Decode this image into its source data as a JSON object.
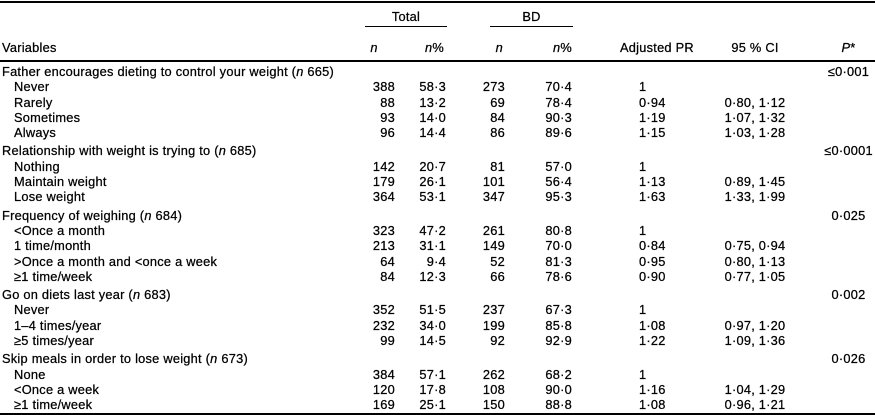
{
  "table": {
    "header": {
      "variables_label": "Variables",
      "total_label": "Total",
      "bd_label": "BD",
      "n_label": "n",
      "pct_label": "%",
      "adjusted_pr_label": "Adjusted PR",
      "ci_label": "95 % CI",
      "p_label": "P",
      "p_star": "*"
    },
    "groups": [
      {
        "label_pre": "Father encourages dieting to control your weight (",
        "label_n": "n",
        "label_post": " 665)",
        "p_value": "≤0·001",
        "rows": [
          {
            "label": "Never",
            "total_n": "388",
            "total_pct": "58·3",
            "bd_n": "273",
            "bd_pct": "70·4",
            "pr": "1",
            "ci": ""
          },
          {
            "label": "Rarely",
            "total_n": "88",
            "total_pct": "13·2",
            "bd_n": "69",
            "bd_pct": "78·4",
            "pr": "0·94",
            "ci": "0·80, 1·12"
          },
          {
            "label": "Sometimes",
            "total_n": "93",
            "total_pct": "14·0",
            "bd_n": "84",
            "bd_pct": "90·3",
            "pr": "1·19",
            "ci": "1·07, 1·32"
          },
          {
            "label": "Always",
            "total_n": "96",
            "total_pct": "14·4",
            "bd_n": "86",
            "bd_pct": "89·6",
            "pr": "1·15",
            "ci": "1·03, 1·28"
          }
        ]
      },
      {
        "label_pre": "Relationship with weight is trying to (",
        "label_n": "n",
        "label_post": " 685)",
        "p_value": "≤0·0001",
        "rows": [
          {
            "label": "Nothing",
            "total_n": "142",
            "total_pct": "20·7",
            "bd_n": "81",
            "bd_pct": "57·0",
            "pr": "1",
            "ci": ""
          },
          {
            "label": "Maintain weight",
            "total_n": "179",
            "total_pct": "26·1",
            "bd_n": "101",
            "bd_pct": "56·4",
            "pr": "1·13",
            "ci": "0·89, 1·45"
          },
          {
            "label": "Lose weight",
            "total_n": "364",
            "total_pct": "53·1",
            "bd_n": "347",
            "bd_pct": "95·3",
            "pr": "1·63",
            "ci": "1·33, 1·99"
          }
        ]
      },
      {
        "label_pre": "Frequency of weighing (",
        "label_n": "n",
        "label_post": " 684)",
        "p_value": "0·025",
        "rows": [
          {
            "label": "<Once a month",
            "total_n": "323",
            "total_pct": "47·2",
            "bd_n": "261",
            "bd_pct": "80·8",
            "pr": "1",
            "ci": ""
          },
          {
            "label": "1 time/month",
            "total_n": "213",
            "total_pct": "31·1",
            "bd_n": "149",
            "bd_pct": "70·0",
            "pr": "0·84",
            "ci": "0·75, 0·94"
          },
          {
            "label": ">Once a month and <once a week",
            "total_n": "64",
            "total_pct": "9·4",
            "bd_n": "52",
            "bd_pct": "81·3",
            "pr": "0·95",
            "ci": "0·80, 1·13"
          },
          {
            "label": "≥1 time/week",
            "total_n": "84",
            "total_pct": "12·3",
            "bd_n": "66",
            "bd_pct": "78·6",
            "pr": "0·90",
            "ci": "0·77, 1·05"
          }
        ]
      },
      {
        "label_pre": "Go on diets last year (",
        "label_n": "n",
        "label_post": " 683)",
        "p_value": "0·002",
        "rows": [
          {
            "label": "Never",
            "total_n": "352",
            "total_pct": "51·5",
            "bd_n": "237",
            "bd_pct": "67·3",
            "pr": "1",
            "ci": ""
          },
          {
            "label": "1–4 times/year",
            "total_n": "232",
            "total_pct": "34·0",
            "bd_n": "199",
            "bd_pct": "85·8",
            "pr": "1·08",
            "ci": "0·97, 1·20"
          },
          {
            "label": "≥5 times/year",
            "total_n": "99",
            "total_pct": "14·5",
            "bd_n": "92",
            "bd_pct": "92·9",
            "pr": "1·22",
            "ci": "1·09, 1·36"
          }
        ]
      },
      {
        "label_pre": "Skip meals in order to lose weight (",
        "label_n": "n",
        "label_post": " 673)",
        "p_value": "0·026",
        "rows": [
          {
            "label": "None",
            "total_n": "384",
            "total_pct": "57·1",
            "bd_n": "262",
            "bd_pct": "68·2",
            "pr": "1",
            "ci": ""
          },
          {
            "label": "<Once a week",
            "total_n": "120",
            "total_pct": "17·8",
            "bd_n": "108",
            "bd_pct": "90·0",
            "pr": "1·16",
            "ci": "1·04, 1·29"
          },
          {
            "label": "≥1 time/week",
            "total_n": "169",
            "total_pct": "25·1",
            "bd_n": "150",
            "bd_pct": "88·8",
            "pr": "1·08",
            "ci": "0·96, 1·21"
          }
        ]
      }
    ]
  }
}
